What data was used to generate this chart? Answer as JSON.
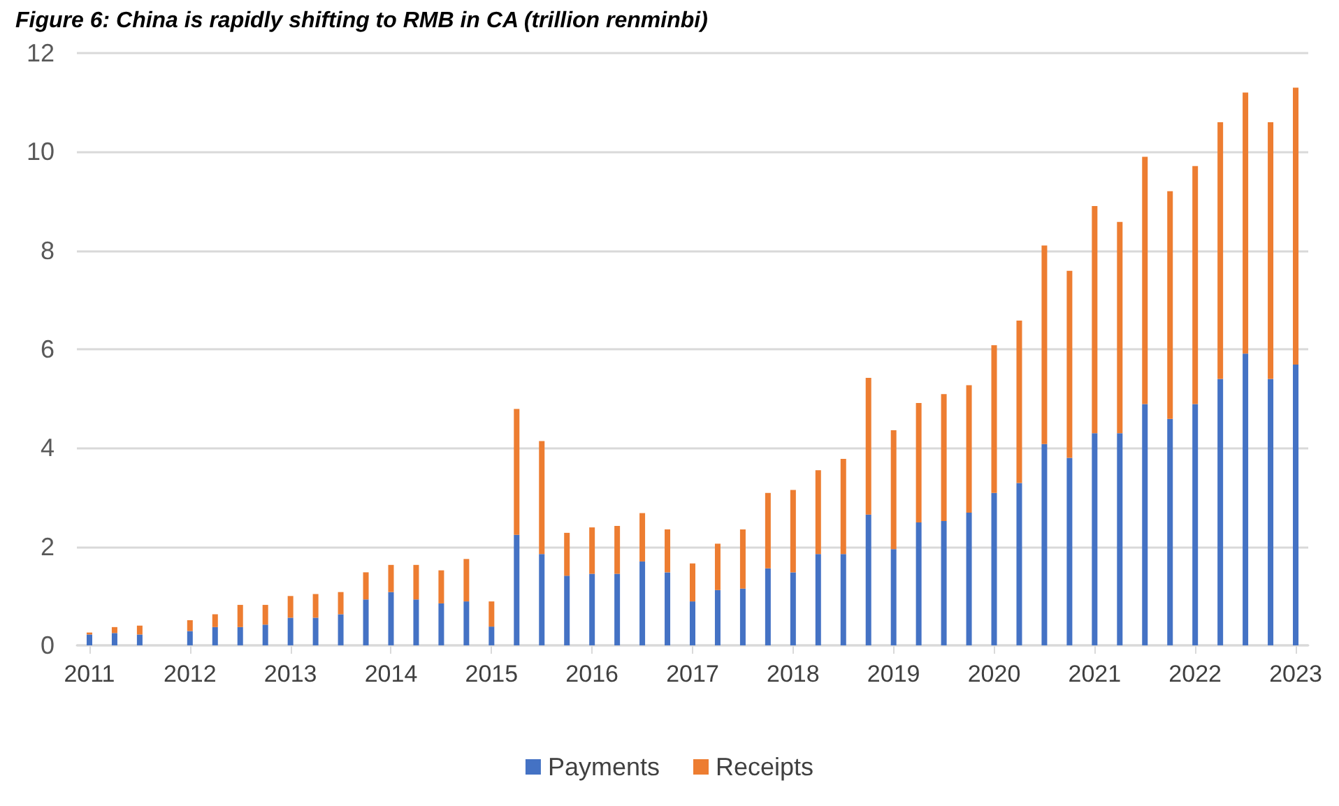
{
  "chart_data": {
    "type": "bar",
    "title": "Figure 6: China is rapidly shifting to RMB in CA (trillion renminbi)",
    "categories": [
      "2011",
      null,
      null,
      null,
      "2012",
      null,
      null,
      null,
      "2013",
      null,
      null,
      null,
      "2014",
      null,
      null,
      null,
      "2015",
      null,
      null,
      null,
      "2016",
      null,
      null,
      null,
      "2017",
      null,
      null,
      null,
      "2018",
      null,
      null,
      null,
      "2019",
      null,
      null,
      null,
      "2020",
      null,
      null,
      null,
      "2021",
      null,
      null,
      null,
      "2022",
      null,
      null,
      null,
      "2023"
    ],
    "series": [
      {
        "name": "Payments",
        "color": "#4472c4",
        "values": [
          0.22,
          0.25,
          0.22,
          null,
          0.29,
          0.37,
          0.37,
          0.42,
          0.56,
          0.56,
          0.63,
          0.93,
          1.08,
          0.93,
          0.85,
          0.89,
          0.38,
          2.24,
          1.85,
          1.41,
          1.45,
          1.45,
          1.7,
          1.48,
          0.89,
          1.12,
          1.15,
          1.56,
          1.48,
          1.85,
          1.85,
          2.65,
          1.95,
          2.49,
          2.52,
          2.69,
          3.09,
          3.29,
          4.08,
          3.8,
          4.3,
          4.3,
          4.89,
          4.59,
          4.89,
          5.4,
          5.91,
          5.4,
          5.69
        ]
      },
      {
        "name": "Receipts",
        "color": "#ed7d31",
        "values": [
          0.04,
          0.12,
          0.18,
          null,
          0.22,
          0.26,
          0.45,
          0.4,
          0.44,
          0.48,
          0.45,
          0.55,
          0.55,
          0.7,
          0.67,
          0.86,
          0.51,
          2.55,
          2.29,
          0.87,
          0.94,
          0.97,
          0.98,
          0.87,
          0.77,
          0.94,
          1.2,
          1.53,
          1.67,
          1.7,
          1.93,
          2.77,
          2.41,
          2.42,
          2.57,
          2.58,
          2.99,
          3.29,
          4.02,
          3.79,
          4.6,
          4.28,
          5.01,
          4.61,
          4.82,
          5.2,
          5.29,
          5.2,
          5.61
        ]
      }
    ],
    "stacked": true,
    "ylim": [
      0,
      12
    ],
    "yticks": [
      0,
      2,
      4,
      6,
      8,
      10,
      12
    ],
    "grid": "y",
    "legend": "bottom"
  }
}
